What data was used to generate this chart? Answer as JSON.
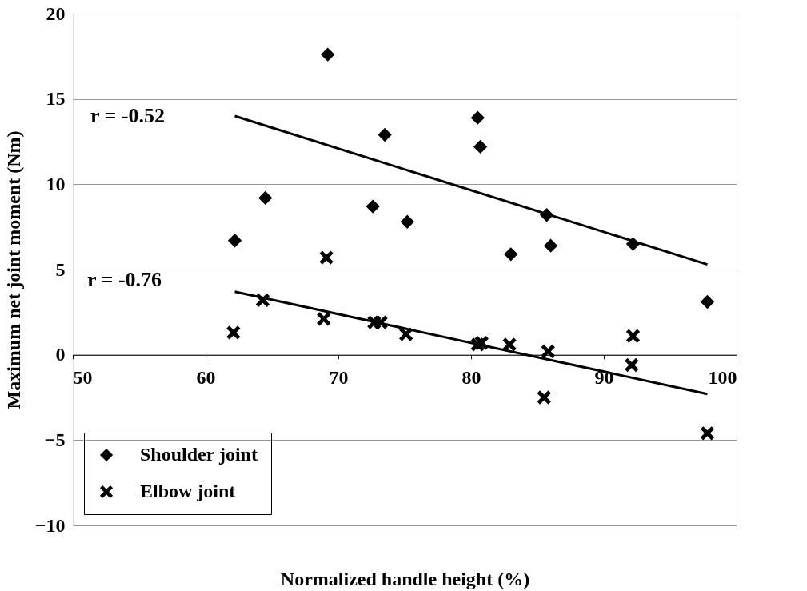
{
  "chart_data": {
    "type": "scatter",
    "xlabel": "Normalized handle height (%)",
    "ylabel": "Maximum net joint moment (Nm)",
    "xlim": [
      50,
      100
    ],
    "xticks": [
      50,
      60,
      70,
      80,
      90,
      100
    ],
    "ylim": [
      -10,
      20
    ],
    "yticks": [
      -10,
      -5,
      0,
      5,
      10,
      15,
      20
    ],
    "grid": "y",
    "legend": "bottom left",
    "series": [
      {
        "name": "Shoulder joint",
        "marker": "diamond",
        "color": "#000000",
        "x": [
          62.2,
          64.5,
          69.2,
          72.6,
          73.5,
          75.2,
          80.5,
          80.7,
          83.0,
          85.7,
          86.0,
          92.2,
          97.8
        ],
        "values": [
          6.7,
          9.2,
          17.6,
          8.7,
          12.9,
          7.8,
          13.9,
          12.2,
          5.9,
          8.2,
          6.4,
          6.5,
          3.1
        ]
      },
      {
        "name": "Elbow joint",
        "marker": "cross",
        "color": "#000000",
        "x": [
          62.1,
          64.3,
          68.9,
          69.1,
          72.7,
          73.2,
          75.1,
          80.5,
          80.8,
          82.9,
          85.8,
          85.5,
          92.2,
          92.1,
          97.8
        ],
        "values": [
          1.3,
          3.2,
          2.1,
          5.7,
          1.9,
          1.9,
          1.2,
          0.6,
          0.7,
          0.6,
          0.2,
          -2.5,
          1.1,
          -0.6,
          -4.6
        ]
      },
      {
        "type": "line",
        "color": "#000000",
        "x": [
          62.2,
          97.8
        ],
        "values": [
          14.0,
          5.3
        ]
      },
      {
        "type": "line",
        "color": "#000000",
        "x": [
          62.2,
          97.8
        ],
        "values": [
          3.7,
          -2.3
        ]
      }
    ],
    "annotations": [
      "r = -0.52",
      "r = -0.76"
    ]
  }
}
